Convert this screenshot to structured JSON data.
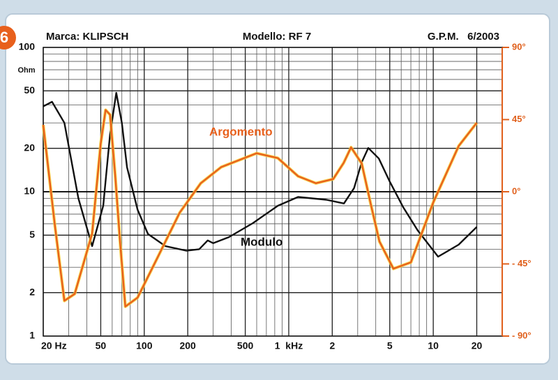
{
  "chart_data": {
    "type": "line",
    "figure_label": "6",
    "subtitle_left": "Marca: KLIPSCH",
    "title": "Modello: RF 7",
    "subtitle_right": "G.P.M.   6/2003",
    "ylabel": "Ohm",
    "xlog": true,
    "ylog": true,
    "grid": true,
    "xlim": [
      20,
      30000
    ],
    "xticks": [
      {
        "value": 20,
        "label": "20 Hz"
      },
      50,
      100,
      200,
      500,
      {
        "value": 1000,
        "label": "1  kHz"
      },
      {
        "value": 2000,
        "label": "2"
      },
      {
        "value": 5000,
        "label": "5"
      },
      {
        "value": 10000,
        "label": "10"
      },
      {
        "value": 20000,
        "label": "20"
      }
    ],
    "ylim": [
      1,
      100
    ],
    "yticks": [
      1,
      2,
      5,
      10,
      20,
      50,
      100
    ],
    "y2lim": [
      -90,
      90
    ],
    "y2ticks": [
      {
        "value": 90,
        "label": "90°"
      },
      {
        "value": 45,
        "label": "45°"
      },
      {
        "value": 0,
        "label": "0°"
      },
      {
        "value": -45,
        "label": "- 45°"
      },
      {
        "value": -90,
        "label": "- 90°"
      }
    ],
    "series": [
      {
        "name": "Modulo",
        "color": "#111111",
        "axis": "y",
        "x": [
          20,
          23,
          28,
          35,
          43.6,
          52,
          58,
          64,
          70,
          76,
          90,
          106,
          140,
          196,
          240,
          275,
          300,
          385,
          565,
          840,
          1160,
          1820,
          2410,
          2830,
          3200,
          3550,
          4200,
          4990,
          6200,
          7800,
          10800,
          15000,
          20000
        ],
        "values": [
          39,
          42,
          30,
          9,
          4.2,
          8,
          25,
          48.5,
          30,
          14.8,
          7.5,
          5.1,
          4.2,
          3.9,
          4.0,
          4.6,
          4.4,
          4.85,
          6.06,
          8.0,
          9.2,
          8.8,
          8.3,
          10.6,
          16,
          20.1,
          17,
          11.8,
          7.8,
          5.4,
          3.55,
          4.3,
          5.7
        ]
      },
      {
        "name": "Argomento",
        "color": "#e8601c",
        "axis": "y2",
        "x": [
          20,
          24,
          28,
          33,
          43.6,
          50,
          54,
          58,
          63,
          68,
          74,
          90,
          126,
          176,
          246,
          341,
          600,
          840,
          1160,
          1540,
          2030,
          2400,
          2700,
          3200,
          3700,
          4240,
          5300,
          7000,
          10000,
          15000,
          20000
        ],
        "values": [
          41.7,
          -20,
          -68,
          -63.7,
          -26,
          30,
          51,
          48,
          10,
          -31,
          -71.6,
          -66,
          -39.5,
          -13,
          5.3,
          15.4,
          24,
          21,
          9.7,
          5.3,
          7.9,
          18,
          27.7,
          17.6,
          -8,
          -31,
          -48,
          -44,
          -6.6,
          28.5,
          43
        ]
      }
    ]
  }
}
